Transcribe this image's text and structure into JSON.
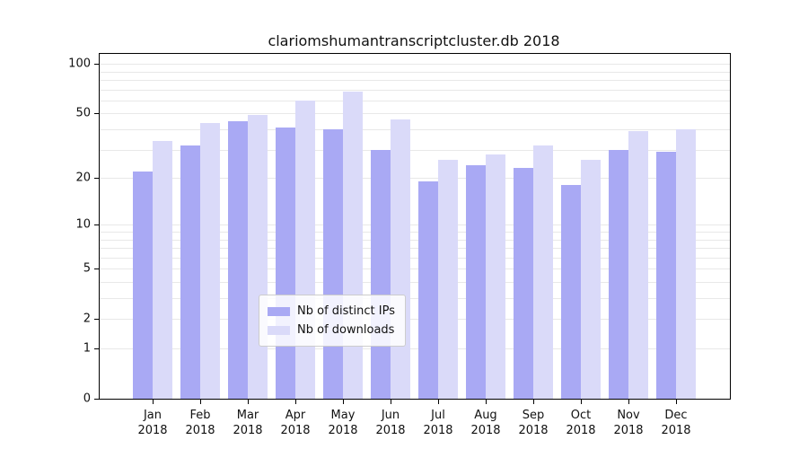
{
  "chart_data": {
    "type": "bar",
    "title": "clariomshumantranscriptcluster.db 2018",
    "categories": [
      "Jan",
      "Feb",
      "Mar",
      "Apr",
      "May",
      "Jun",
      "Jul",
      "Aug",
      "Sep",
      "Oct",
      "Nov",
      "Dec"
    ],
    "year": "2018",
    "series": [
      {
        "name": "Nb of distinct IPs",
        "color": "#a9a9f4",
        "values": [
          22,
          32,
          45,
          41,
          40,
          30,
          19,
          24,
          23,
          18,
          30,
          29
        ]
      },
      {
        "name": "Nb of downloads",
        "color": "#dadaf9",
        "values": [
          34,
          44,
          49,
          60,
          68,
          46,
          26,
          28,
          32,
          26,
          39,
          40
        ]
      }
    ],
    "yscale": "log10(1+x)",
    "y_ticks": [
      100,
      50,
      20,
      10,
      5,
      2,
      1,
      0
    ],
    "gridline_values": [
      1,
      2,
      3,
      4,
      5,
      6,
      7,
      8,
      9,
      10,
      20,
      30,
      40,
      50,
      60,
      70,
      80,
      90,
      100
    ],
    "ylim": [
      0,
      115
    ],
    "grid": true,
    "legend_position": "bottom-center",
    "colors": {
      "grid": "#e8e8e8",
      "axis": "#000000",
      "background": "#ffffff",
      "legend_border": "#cccccc"
    }
  }
}
